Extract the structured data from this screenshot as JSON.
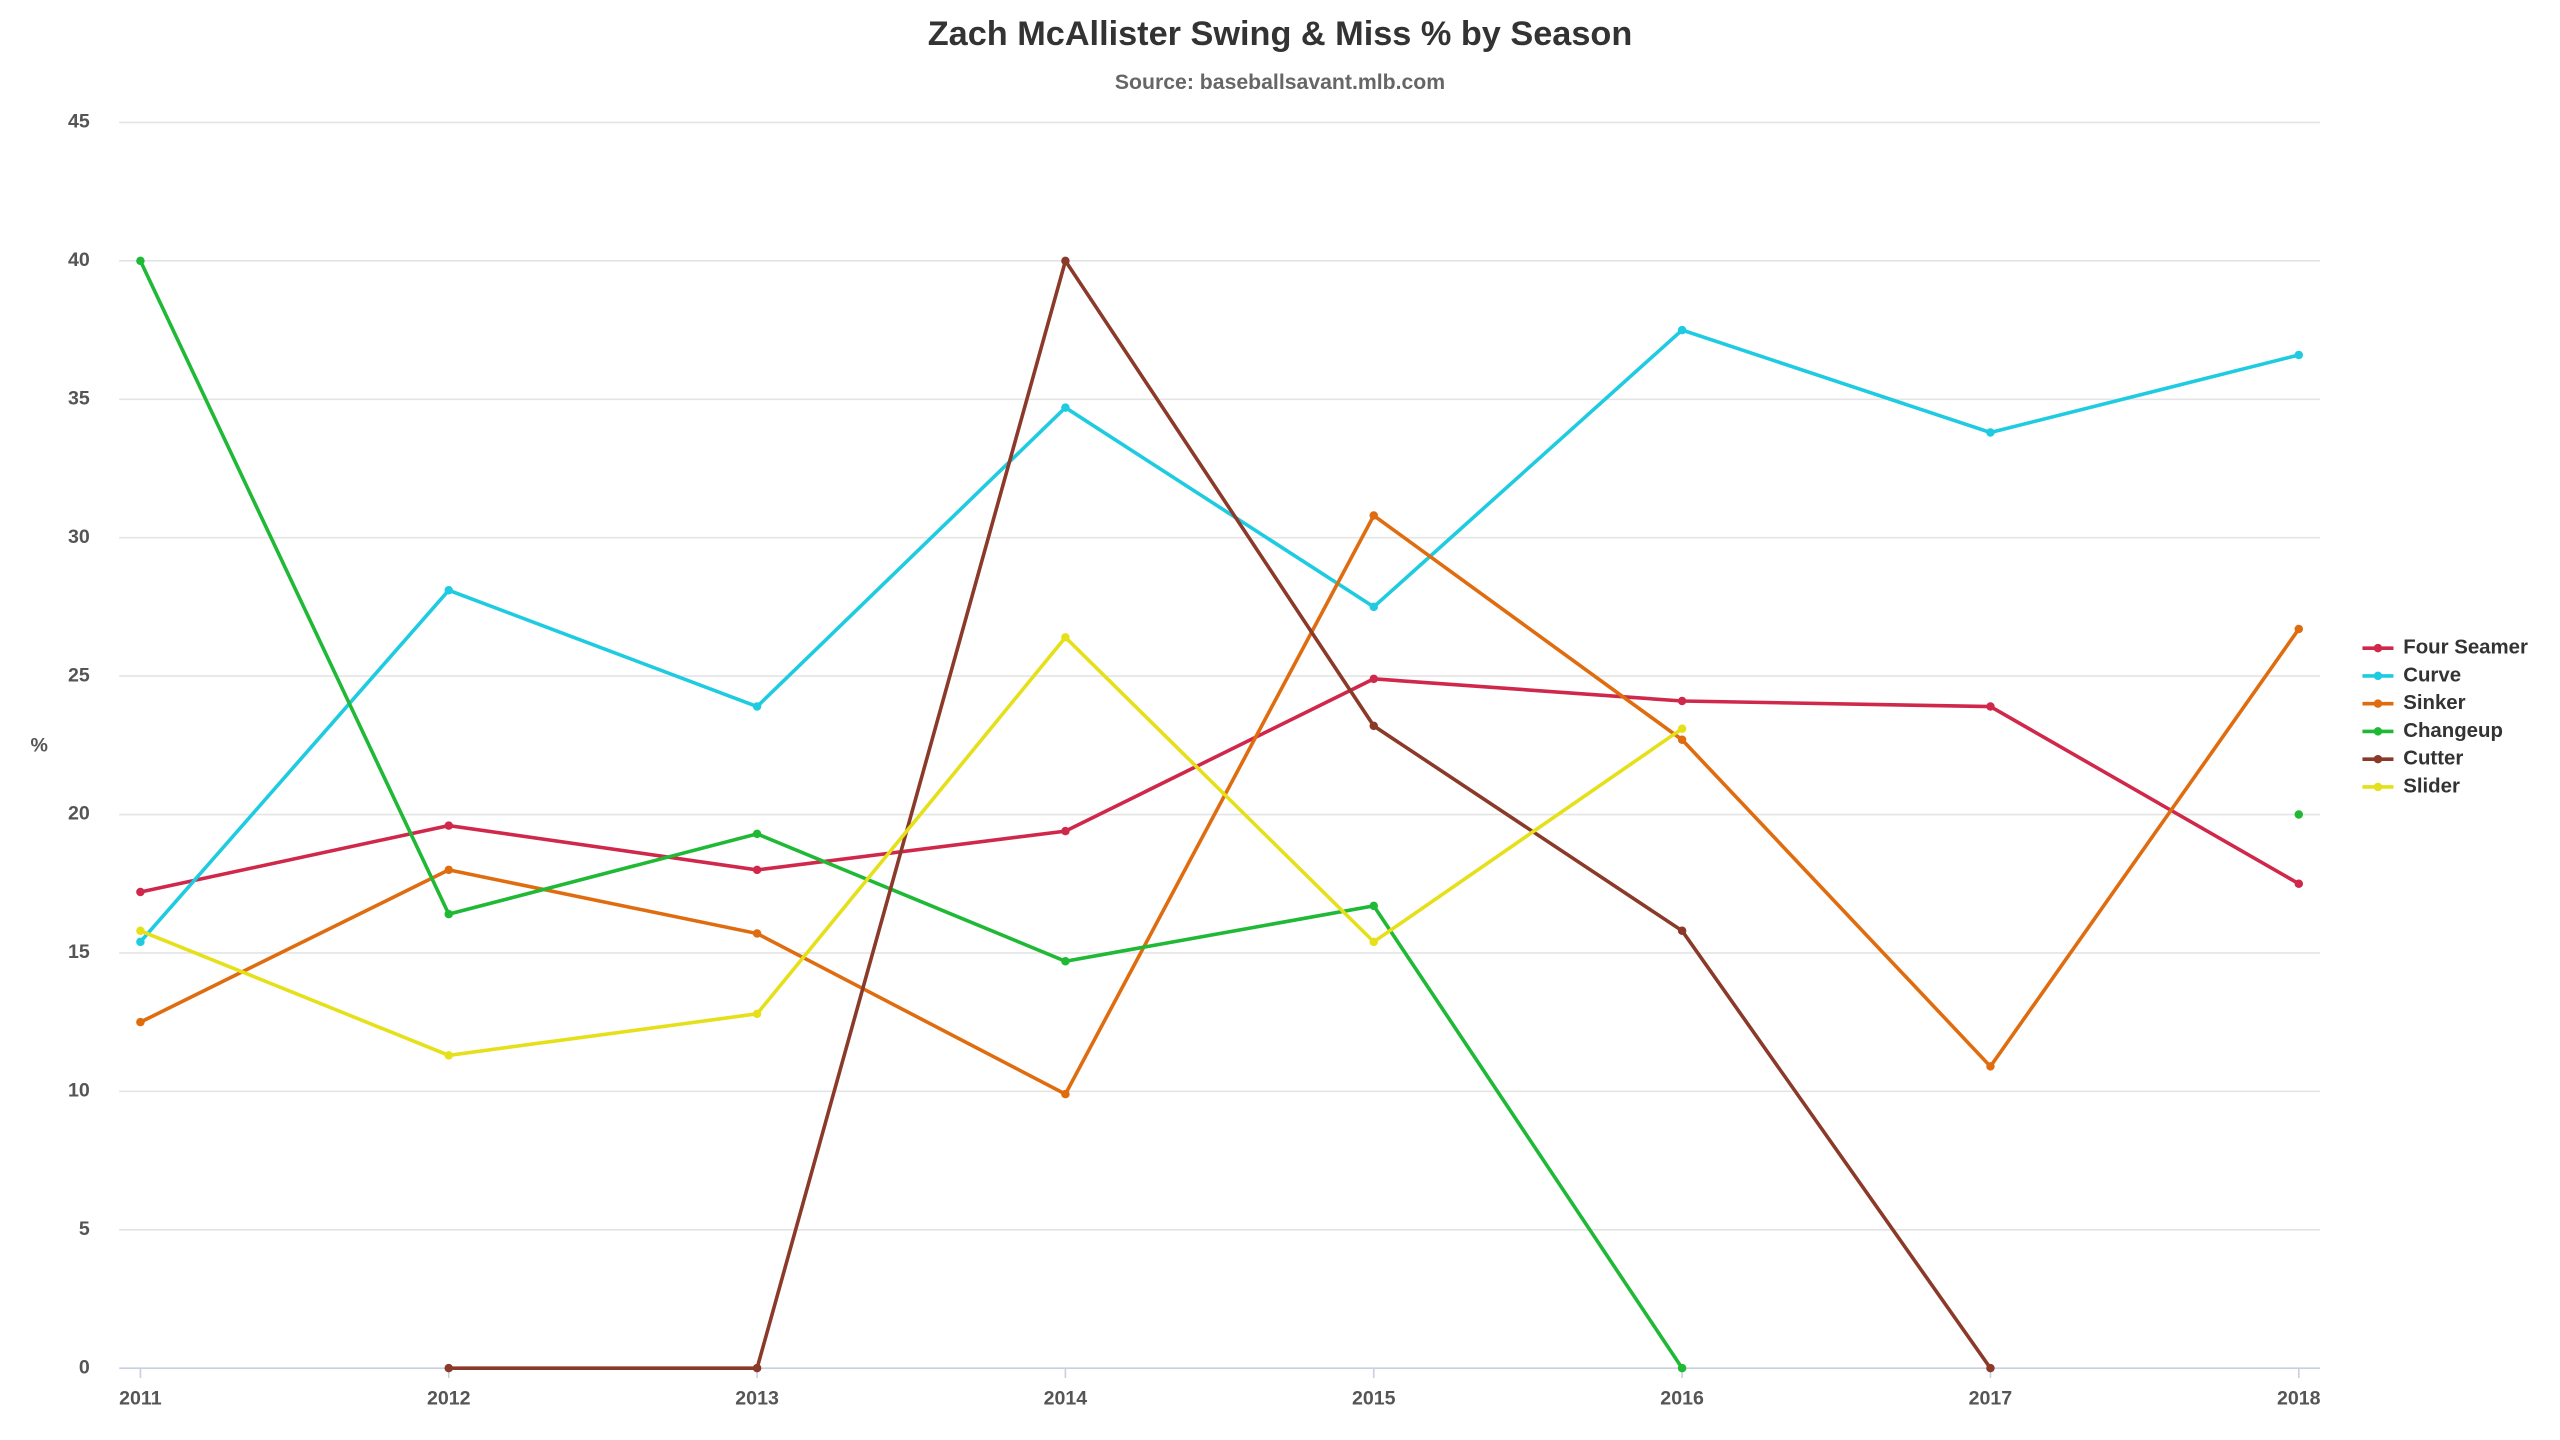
{
  "chart_data": {
    "type": "line",
    "title": "Zach McAllister Swing & Miss % by Season",
    "subtitle": "Source: baseballsavant.mlb.com",
    "y_label": "%",
    "categories": [
      "2011",
      "2012",
      "2013",
      "2014",
      "2015",
      "2016",
      "2017",
      "2018"
    ],
    "ylim": [
      0,
      45
    ],
    "yticks": [
      0,
      5,
      10,
      15,
      20,
      25,
      30,
      35,
      40,
      45
    ],
    "grid": true,
    "legend": "right",
    "series": [
      {
        "name": "Four Seamer",
        "color": "#d0284a",
        "values": [
          17.2,
          19.6,
          18.0,
          19.4,
          24.9,
          24.1,
          23.9,
          17.5
        ]
      },
      {
        "name": "Curve",
        "color": "#1ecbe1",
        "values": [
          15.4,
          28.1,
          23.9,
          34.7,
          27.5,
          37.5,
          33.8,
          36.6
        ]
      },
      {
        "name": "Sinker",
        "color": "#e06c10",
        "values": [
          12.5,
          18.0,
          15.7,
          9.9,
          30.8,
          22.7,
          10.9,
          26.7
        ]
      },
      {
        "name": "Changeup",
        "color": "#1fb935",
        "values": [
          40.0,
          16.4,
          19.3,
          14.7,
          16.7,
          0,
          null,
          20.0
        ]
      },
      {
        "name": "Cutter",
        "color": "#8b3a2a",
        "values": [
          null,
          0,
          0,
          40.0,
          23.2,
          15.8,
          0,
          null
        ]
      },
      {
        "name": "Slider",
        "color": "#e5e01a",
        "values": [
          15.8,
          11.3,
          12.8,
          26.4,
          15.4,
          23.1,
          null,
          null
        ]
      }
    ]
  }
}
